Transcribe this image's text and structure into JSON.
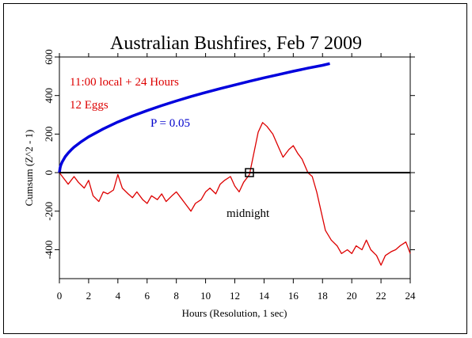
{
  "chart_data": {
    "type": "line",
    "title": "Australian Bushfires, Feb 7 2009",
    "xlabel": "Hours (Resolution, 1 sec)",
    "ylabel": "Cumsum (Z^2 - 1)",
    "xlim": [
      0,
      24
    ],
    "ylim": [
      -550,
      600
    ],
    "xticks": [
      0,
      2,
      4,
      6,
      8,
      10,
      12,
      14,
      16,
      18,
      20,
      22,
      24
    ],
    "yticks": [
      -400,
      -200,
      0,
      200,
      400,
      600
    ],
    "grid": false,
    "annotations": [
      {
        "text": "11:00 local + 24 Hours",
        "color": "#dd0000"
      },
      {
        "text": "12 Eggs",
        "color": "#dd0000"
      },
      {
        "text": "P = 0.05",
        "color": "#0000cc"
      },
      {
        "text": "midnight",
        "color": "#000000"
      }
    ],
    "marker": {
      "x": 13.0,
      "y": 0
    },
    "series": [
      {
        "color": "#dd0000",
        "x": [
          0,
          0.3,
          0.6,
          1.0,
          1.3,
          1.7,
          2.0,
          2.3,
          2.7,
          3.0,
          3.3,
          3.7,
          4.0,
          4.3,
          4.7,
          5.0,
          5.3,
          5.7,
          6.0,
          6.3,
          6.7,
          7.0,
          7.3,
          7.7,
          8.0,
          8.3,
          8.7,
          9.0,
          9.3,
          9.7,
          10.0,
          10.3,
          10.7,
          11.0,
          11.3,
          11.7,
          12.0,
          12.3,
          12.6,
          13.0,
          13.3,
          13.6,
          13.9,
          14.2,
          14.6,
          15.0,
          15.3,
          15.7,
          16.0,
          16.3,
          16.6,
          17.0,
          17.3,
          17.6,
          17.9,
          18.2,
          18.6,
          19.0,
          19.3,
          19.7,
          20.0,
          20.3,
          20.7,
          21.0,
          21.3,
          21.7,
          22.0,
          22.3,
          22.7,
          23.0,
          23.3,
          23.7,
          24.0
        ],
        "y": [
          0,
          -30,
          -60,
          -20,
          -50,
          -80,
          -40,
          -120,
          -150,
          -100,
          -110,
          -90,
          -10,
          -80,
          -110,
          -130,
          -100,
          -140,
          -160,
          -120,
          -140,
          -110,
          -150,
          -120,
          -100,
          -130,
          -170,
          -200,
          -160,
          -140,
          -100,
          -80,
          -110,
          -60,
          -40,
          -20,
          -70,
          -100,
          -50,
          -10,
          100,
          210,
          260,
          240,
          200,
          130,
          80,
          120,
          140,
          100,
          70,
          0,
          -20,
          -100,
          -200,
          -300,
          -350,
          -380,
          -420,
          -400,
          -420,
          -380,
          -400,
          -350,
          -400,
          -430,
          -480,
          -430,
          -410,
          -400,
          -380,
          -360,
          -420
        ]
      },
      {
        "name": "P = 0.05",
        "color": "#0000dd",
        "x": [
          0,
          0.05,
          0.1,
          0.2,
          0.4,
          0.6,
          0.8,
          1,
          1.5,
          2,
          3,
          4,
          5,
          6,
          7,
          8,
          9,
          10,
          11,
          12,
          13,
          14,
          15,
          16,
          17,
          18,
          18.5
        ],
        "y": [
          0,
          25,
          39,
          57,
          83,
          102,
          118,
          132,
          161,
          186,
          227,
          263,
          294,
          322,
          348,
          372,
          395,
          416,
          436,
          455,
          474,
          492,
          509,
          526,
          542,
          557,
          566
        ]
      }
    ]
  }
}
